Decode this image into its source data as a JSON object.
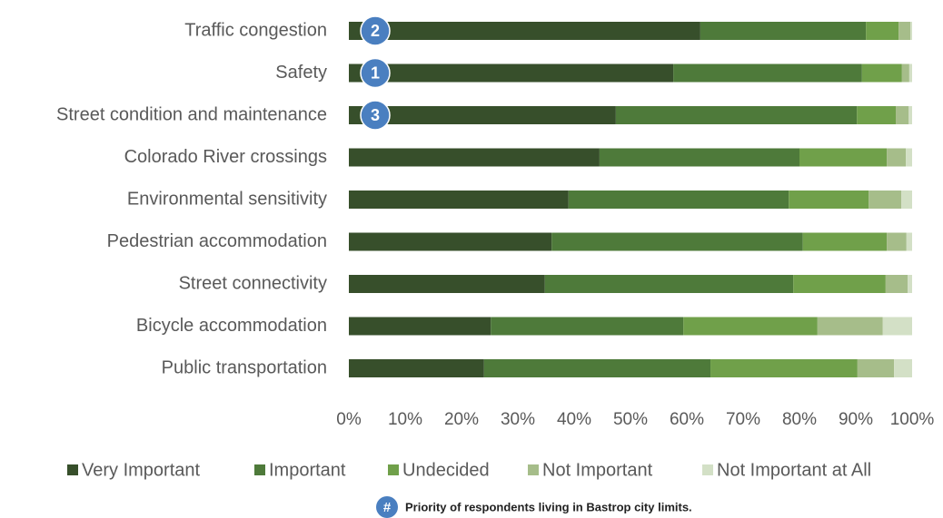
{
  "chart_data": {
    "type": "stacked_barh",
    "categories": [
      "Traffic congestion",
      "Safety",
      "Street condition and maintenance",
      "Colorado River crossings",
      "Environmental sensitivity",
      "Pedestrian accommodation",
      "Street connectivity",
      "Bicycle accommodation",
      "Public transportation"
    ],
    "series": [
      {
        "name": "Very Important",
        "color": "#374f2b",
        "values": [
          62.4,
          57.6,
          47.4,
          44.5,
          39.0,
          36.0,
          34.8,
          25.2,
          24.0
        ]
      },
      {
        "name": "Important",
        "color": "#4e7a3a",
        "values": [
          29.4,
          33.5,
          42.8,
          35.5,
          39.1,
          44.6,
          44.1,
          34.2,
          40.2
        ]
      },
      {
        "name": "Undecided",
        "color": "#70a04a",
        "values": [
          5.8,
          7.1,
          6.9,
          15.5,
          14.2,
          14.9,
          16.4,
          23.8,
          26.1
        ]
      },
      {
        "name": "Not Important",
        "color": "#a6bd8a",
        "values": [
          2.1,
          1.3,
          2.3,
          3.4,
          5.8,
          3.5,
          3.9,
          11.6,
          6.5
        ]
      },
      {
        "name": "Not Important at All",
        "color": "#d3e0c6",
        "values": [
          0.3,
          0.5,
          0.6,
          1.1,
          1.9,
          1.0,
          0.8,
          5.2,
          3.2
        ]
      }
    ],
    "xlim": [
      0,
      100
    ],
    "xticks": [
      {
        "value": 0,
        "label": "0%"
      },
      {
        "value": 10,
        "label": "10%"
      },
      {
        "value": 20,
        "label": "20%"
      },
      {
        "value": 30,
        "label": "30%"
      },
      {
        "value": 40,
        "label": "40%"
      },
      {
        "value": 50,
        "label": "50%"
      },
      {
        "value": 60,
        "label": "60%"
      },
      {
        "value": 70,
        "label": "70%"
      },
      {
        "value": 80,
        "label": "80%"
      },
      {
        "value": 90,
        "label": "90%"
      },
      {
        "value": 100,
        "label": "100%"
      }
    ],
    "legend": "bottom",
    "badges": [
      "2",
      "1",
      "3",
      null,
      null,
      null,
      null,
      null,
      null
    ],
    "note_symbol": "#",
    "note": "Priority of respondents living in Bastrop city limits."
  }
}
